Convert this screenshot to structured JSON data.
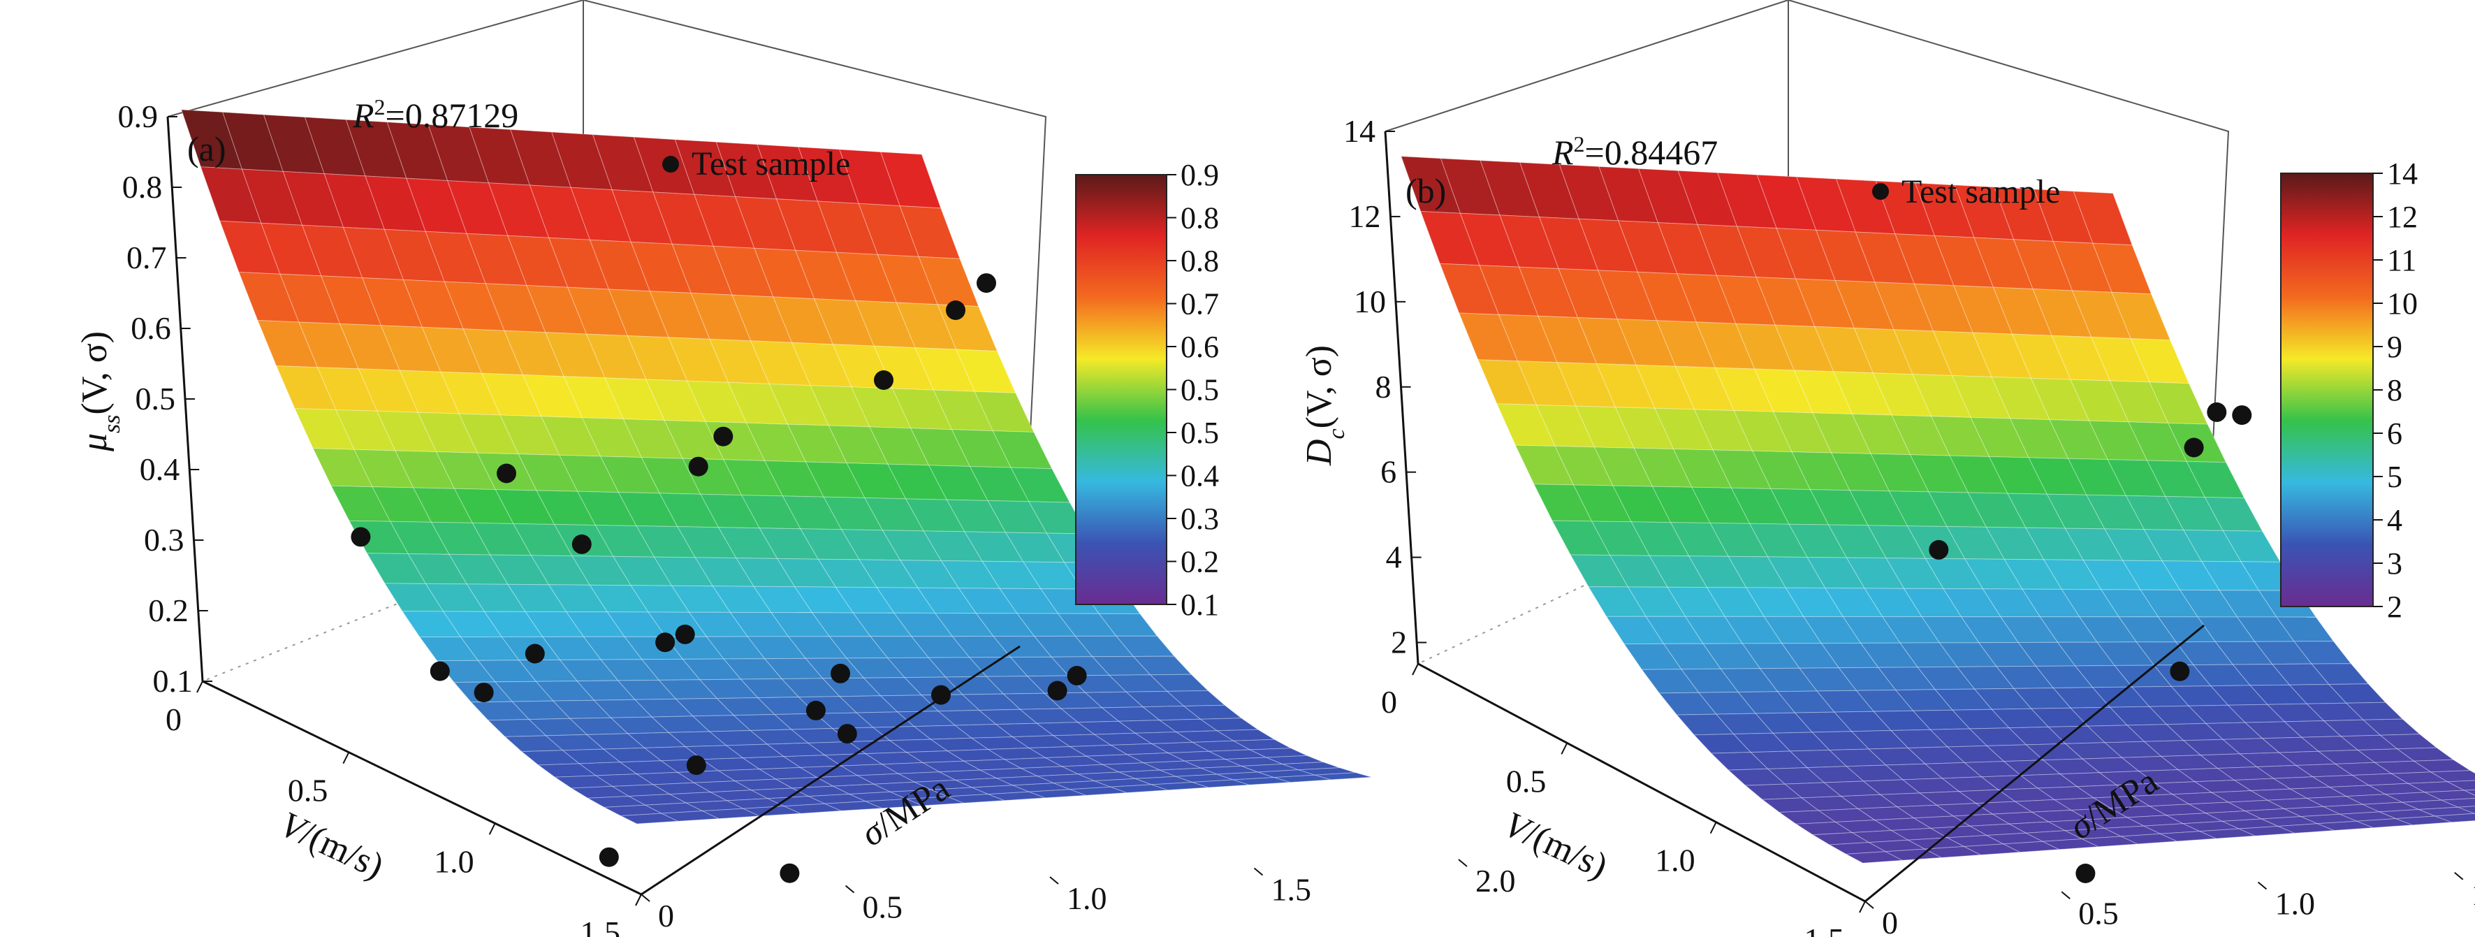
{
  "colorbar_stops": [
    "#6a2c91",
    "#3a54b4",
    "#36b9e0",
    "#35c24a",
    "#f5e928",
    "#f36a1f",
    "#e02424",
    "#5a1a1a"
  ],
  "colors": {
    "marker": "#111111",
    "box_edge": "#333333",
    "grid_mesh": "#ffffff"
  },
  "chart_data": [
    {
      "type": "surface",
      "panel_label": "(a)",
      "annotation": {
        "label": "R",
        "superscript": "2",
        "value": "=0.87129"
      },
      "legend": [
        {
          "marker": "circle",
          "label": "Test sample",
          "placement": "top-right"
        }
      ],
      "xlabel": {
        "italic": "V",
        "rest": "/(m/s)"
      },
      "ylabel": {
        "italic": "σ",
        "rest": "/MPa"
      },
      "zlabel": {
        "base": "μ",
        "sub": "ss",
        "args": "(V, σ)"
      },
      "x_ticks": [
        "0",
        "0.5",
        "1.0",
        "1.5"
      ],
      "y_ticks": [
        "0",
        "0.5",
        "1.0",
        "1.5",
        "2.0"
      ],
      "z_ticks": [
        "0.1",
        "0.2",
        "0.3",
        "0.4",
        "0.5",
        "0.6",
        "0.7",
        "0.8",
        "0.9"
      ],
      "colorbar_ticks": [
        "0.9",
        "0.8",
        "0.8",
        "0.7",
        "0.6",
        "0.5",
        "0.5",
        "0.4",
        "0.3",
        "0.2",
        "0.1"
      ],
      "xlim": [
        0,
        1.5
      ],
      "ylim": [
        0,
        2
      ],
      "zlim": [
        0.1,
        0.9
      ],
      "surface": {
        "x_range": [
          0.05,
          1.5
        ],
        "y_range": [
          0,
          1.8
        ],
        "z_min": 0.18,
        "z_max": 0.92,
        "z_floor": 0.2
      },
      "samples": [
        [
          0.25,
          1.8,
          0.67
        ],
        [
          0.28,
          1.7,
          0.64
        ],
        [
          0.3,
          1.5,
          0.55
        ],
        [
          0.3,
          1.1,
          0.48
        ],
        [
          0.25,
          0.6,
          0.43
        ],
        [
          0.35,
          1.0,
          0.45
        ],
        [
          0.3,
          0.2,
          0.36
        ],
        [
          0.5,
          0.6,
          0.38
        ],
        [
          0.6,
          0.4,
          0.25
        ],
        [
          0.7,
          0.7,
          0.29
        ],
        [
          0.7,
          0.65,
          0.28
        ],
        [
          0.55,
          0.2,
          0.22
        ],
        [
          0.7,
          0.2,
          0.22
        ],
        [
          0.95,
          0.9,
          0.28
        ],
        [
          1.0,
          0.8,
          0.24
        ],
        [
          1.0,
          0.5,
          0.17
        ],
        [
          1.35,
          1.2,
          0.35
        ],
        [
          1.35,
          1.15,
          0.33
        ],
        [
          1.3,
          0.9,
          0.32
        ],
        [
          1.25,
          0.7,
          0.26
        ],
        [
          1.25,
          0.1,
          0.1
        ],
        [
          1.45,
          0.4,
          0.11
        ]
      ]
    },
    {
      "type": "surface",
      "panel_label": "(b)",
      "annotation": {
        "label": "R",
        "superscript": "2",
        "value": "=0.84467"
      },
      "legend": [
        {
          "marker": "circle",
          "label": "Test sample",
          "placement": "top-right"
        }
      ],
      "xlabel": {
        "italic": "V",
        "rest": "/(m/s)"
      },
      "ylabel": {
        "italic": "σ",
        "rest": "/MPa"
      },
      "zlabel": {
        "base": "D",
        "sub": "c",
        "args": "(V, σ)"
      },
      "x_ticks": [
        "0",
        "0.5",
        "1.0",
        "1.5"
      ],
      "y_ticks": [
        "0",
        "0.5",
        "1.0",
        "1.5",
        "2.0"
      ],
      "z_ticks": [
        "2",
        "4",
        "6",
        "8",
        "10",
        "12",
        "14"
      ],
      "colorbar_ticks": [
        "14",
        "12",
        "11",
        "10",
        "9",
        "8",
        "6",
        "5",
        "4",
        "3",
        "2"
      ],
      "xlim": [
        0,
        1.5
      ],
      "ylim": [
        0,
        2
      ],
      "zlim": [
        1.5,
        14
      ],
      "surface": {
        "x_range": [
          0.05,
          1.5
        ],
        "y_range": [
          0,
          1.8
        ],
        "z_min": 2.2,
        "z_max": 13.6,
        "z_floor": 2.4
      },
      "samples": [
        [
          0.45,
          1.8,
          8.2
        ],
        [
          0.5,
          1.7,
          8.5
        ],
        [
          0.55,
          1.6,
          7.9
        ],
        [
          0.6,
          0.9,
          6.0
        ],
        [
          1.0,
          1.2,
          4.5
        ],
        [
          1.45,
          0.6,
          1.7
        ]
      ]
    }
  ]
}
